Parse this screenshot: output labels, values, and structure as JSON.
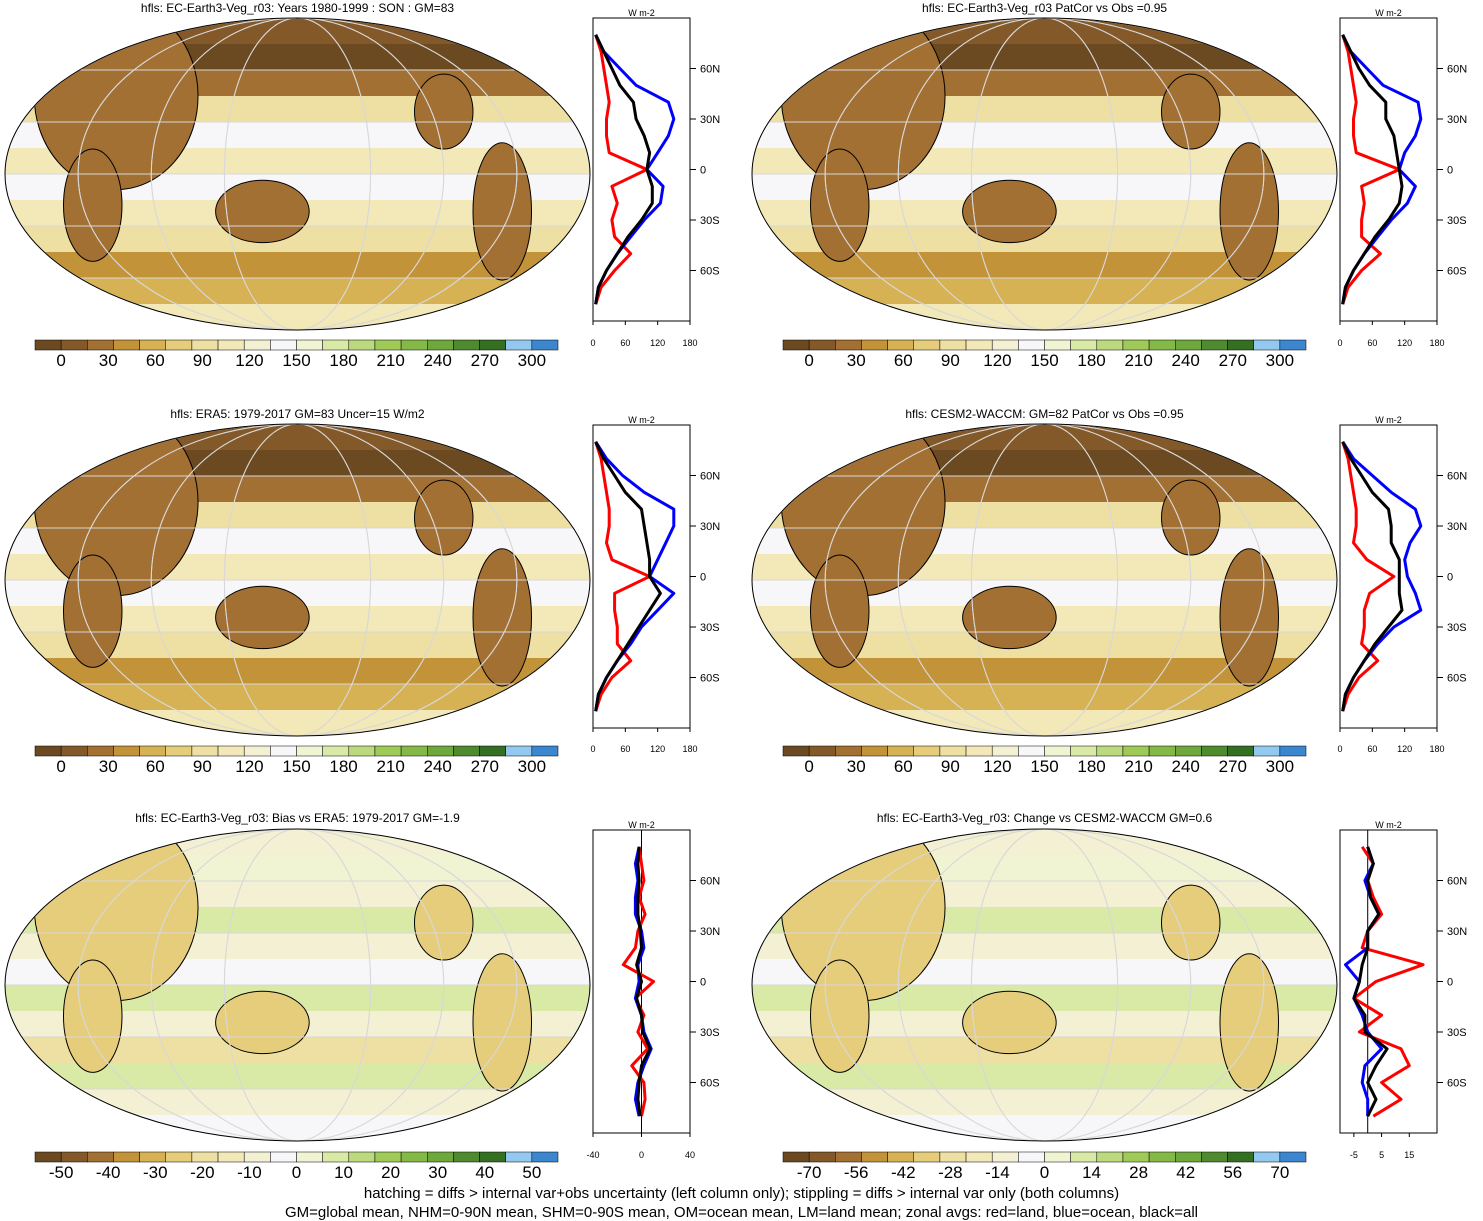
{
  "colors": {
    "land": "#ff0000",
    "ocean": "#0000ff",
    "all": "#000000",
    "abs_scale": [
      "#6b4a21",
      "#84592a",
      "#a37034",
      "#c39339",
      "#d6b255",
      "#e6cd7c",
      "#ede0a2",
      "#f2e8b8",
      "#f4f0d4",
      "#f7f7fa",
      "#f0f4d2",
      "#d9e9a6",
      "#bbd97d",
      "#9fca58",
      "#84b947",
      "#6ea73b",
      "#4f8b2e",
      "#356f22",
      "#93c9ee",
      "#3b86cf"
    ],
    "diff_scale": [
      "#6b4a21",
      "#84592a",
      "#a37034",
      "#c39339",
      "#d6b255",
      "#e6cd7c",
      "#ede0a2",
      "#f2e8b8",
      "#f4f0d4",
      "#f7f7fa",
      "#f0f4d2",
      "#d9e9a6",
      "#bbd97d",
      "#9fca58",
      "#84b947",
      "#6ea73b",
      "#4f8b2e",
      "#356f22",
      "#93c9ee",
      "#3b86cf"
    ]
  },
  "chart_data": [
    {
      "type": "heatmap",
      "title": "hfls: EC-Earth3-Veg_r03: Years 1980-1999 : SON : GM=83",
      "colorbar_labels": [
        "0",
        "30",
        "60",
        "90",
        "120",
        "150",
        "180",
        "210",
        "240",
        "270",
        "300"
      ],
      "zonal": {
        "type": "line",
        "unit": "W m-2",
        "xlim": [
          0,
          180
        ],
        "xticks": [
          "0",
          "60",
          "120",
          "180"
        ],
        "ylim": [
          -90,
          90
        ],
        "yticks": [
          "60N",
          "30N",
          "0",
          "30S",
          "60S"
        ],
        "series": [
          {
            "color": "land",
            "lat": [
              80,
              70,
              60,
              50,
              40,
              30,
              20,
              10,
              0,
              -10,
              -20,
              -30,
              -40,
              -50,
              -60,
              -70,
              -80
            ],
            "values": [
              5,
              15,
              20,
              25,
              30,
              25,
              25,
              30,
              100,
              35,
              45,
              35,
              40,
              70,
              40,
              15,
              5
            ]
          },
          {
            "color": "ocean",
            "lat": [
              80,
              70,
              60,
              50,
              40,
              30,
              20,
              10,
              0,
              -10,
              -20,
              -30,
              -40,
              -50,
              -60,
              -70,
              -80
            ],
            "values": [
              5,
              20,
              50,
              80,
              140,
              150,
              140,
              120,
              100,
              130,
              125,
              95,
              70,
              45,
              25,
              10,
              5
            ]
          },
          {
            "color": "all",
            "lat": [
              80,
              70,
              60,
              50,
              40,
              30,
              20,
              10,
              0,
              -10,
              -20,
              -30,
              -40,
              -50,
              -60,
              -70,
              -80
            ],
            "values": [
              5,
              20,
              35,
              50,
              75,
              80,
              95,
              105,
              100,
              110,
              110,
              90,
              65,
              45,
              25,
              10,
              5
            ]
          }
        ]
      }
    },
    {
      "type": "heatmap",
      "title": "hfls: EC-Earth3-Veg_r03 PatCor vs Obs =0.95",
      "colorbar_labels": [
        "0",
        "30",
        "60",
        "90",
        "120",
        "150",
        "180",
        "210",
        "240",
        "270",
        "300"
      ],
      "zonal": {
        "type": "line",
        "unit": "W m-2",
        "xlim": [
          0,
          180
        ],
        "xticks": [
          "0",
          "60",
          "120",
          "180"
        ],
        "ylim": [
          -90,
          90
        ],
        "yticks": [
          "60N",
          "30N",
          "0",
          "30S",
          "60S"
        ],
        "series": [
          {
            "color": "land",
            "lat": [
              80,
              70,
              60,
              50,
              40,
              30,
              20,
              10,
              0,
              -10,
              -20,
              -30,
              -40,
              -50,
              -60,
              -70,
              -80
            ],
            "values": [
              5,
              15,
              20,
              25,
              30,
              25,
              25,
              30,
              110,
              40,
              45,
              40,
              40,
              75,
              40,
              15,
              5
            ]
          },
          {
            "color": "ocean",
            "lat": [
              80,
              70,
              60,
              50,
              40,
              30,
              20,
              10,
              0,
              -10,
              -20,
              -30,
              -40,
              -50,
              -60,
              -70,
              -80
            ],
            "values": [
              5,
              20,
              50,
              80,
              145,
              150,
              140,
              120,
              110,
              140,
              125,
              95,
              70,
              45,
              25,
              10,
              5
            ]
          },
          {
            "color": "all",
            "lat": [
              80,
              70,
              60,
              50,
              40,
              30,
              20,
              10,
              0,
              -10,
              -20,
              -30,
              -40,
              -50,
              -60,
              -70,
              -80
            ],
            "values": [
              5,
              20,
              35,
              55,
              85,
              85,
              100,
              105,
              110,
              115,
              110,
              90,
              65,
              45,
              25,
              10,
              5
            ]
          }
        ]
      }
    },
    {
      "type": "heatmap",
      "title": "hfls: ERA5: 1979-2017 GM=83 Uncer=15 W/m2",
      "colorbar_labels": [
        "0",
        "30",
        "60",
        "90",
        "120",
        "150",
        "180",
        "210",
        "240",
        "270",
        "300"
      ],
      "zonal": {
        "type": "line",
        "unit": "W m-2",
        "xlim": [
          0,
          180
        ],
        "xticks": [
          "0",
          "60",
          "120",
          "180"
        ],
        "ylim": [
          -90,
          90
        ],
        "yticks": [
          "60N",
          "30N",
          "0",
          "30S",
          "60S"
        ],
        "series": [
          {
            "color": "land",
            "lat": [
              80,
              70,
              60,
              50,
              40,
              30,
              20,
              10,
              0,
              -10,
              -20,
              -30,
              -40,
              -50,
              -60,
              -70,
              -80
            ],
            "values": [
              5,
              15,
              20,
              25,
              30,
              30,
              25,
              35,
              105,
              40,
              40,
              45,
              45,
              70,
              35,
              15,
              5
            ]
          },
          {
            "color": "ocean",
            "lat": [
              80,
              70,
              60,
              50,
              40,
              30,
              20,
              10,
              0,
              -10,
              -20,
              -30,
              -40,
              -50,
              -60,
              -70,
              -80
            ],
            "values": [
              5,
              25,
              55,
              95,
              150,
              150,
              135,
              120,
              105,
              150,
              120,
              90,
              70,
              45,
              25,
              10,
              5
            ]
          },
          {
            "color": "all",
            "lat": [
              80,
              70,
              60,
              50,
              40,
              30,
              20,
              10,
              0,
              -10,
              -20,
              -30,
              -40,
              -50,
              -60,
              -70,
              -80
            ],
            "values": [
              5,
              20,
              40,
              60,
              90,
              95,
              100,
              105,
              105,
              125,
              105,
              85,
              65,
              45,
              25,
              10,
              5
            ]
          }
        ]
      }
    },
    {
      "type": "heatmap",
      "title": "hfls: CESM2-WACCM: GM=82 PatCor vs Obs =0.95",
      "colorbar_labels": [
        "0",
        "30",
        "60",
        "90",
        "120",
        "150",
        "180",
        "210",
        "240",
        "270",
        "300"
      ],
      "zonal": {
        "type": "line",
        "unit": "W m-2",
        "xlim": [
          0,
          180
        ],
        "xticks": [
          "0",
          "60",
          "120",
          "180"
        ],
        "ylim": [
          -90,
          90
        ],
        "yticks": [
          "60N",
          "30N",
          "0",
          "30S",
          "60S"
        ],
        "series": [
          {
            "color": "land",
            "lat": [
              80,
              70,
              60,
              50,
              40,
              30,
              20,
              10,
              0,
              -10,
              -20,
              -30,
              -40,
              -50,
              -60,
              -70,
              -80
            ],
            "values": [
              5,
              15,
              20,
              25,
              30,
              30,
              25,
              50,
              100,
              55,
              45,
              45,
              40,
              70,
              35,
              15,
              5
            ]
          },
          {
            "color": "ocean",
            "lat": [
              80,
              70,
              60,
              50,
              40,
              30,
              20,
              10,
              0,
              -10,
              -20,
              -30,
              -40,
              -50,
              -60,
              -70,
              -80
            ],
            "values": [
              5,
              25,
              60,
              95,
              140,
              150,
              130,
              120,
              125,
              140,
              150,
              100,
              70,
              45,
              25,
              10,
              5
            ]
          },
          {
            "color": "all",
            "lat": [
              80,
              70,
              60,
              50,
              40,
              30,
              20,
              10,
              0,
              -10,
              -20,
              -30,
              -40,
              -50,
              -60,
              -70,
              -80
            ],
            "values": [
              5,
              20,
              40,
              60,
              90,
              95,
              95,
              110,
              110,
              110,
              115,
              90,
              65,
              45,
              25,
              10,
              5
            ]
          }
        ]
      }
    },
    {
      "type": "heatmap",
      "title": "hfls: EC-Earth3-Veg_r03: Bias vs ERA5: 1979-2017  GM=-1.9",
      "colorbar_labels": [
        "-50",
        "-40",
        "-30",
        "-20",
        "-10",
        "0",
        "10",
        "20",
        "30",
        "40",
        "50"
      ],
      "zonal": {
        "type": "line",
        "unit": "W m-2",
        "xlim": [
          -40,
          40
        ],
        "xticks": [
          "-40",
          "0",
          "40"
        ],
        "ylim": [
          -90,
          90
        ],
        "yticks": [
          "60N",
          "30N",
          "0",
          "30S",
          "60S"
        ],
        "series": [
          {
            "color": "land",
            "lat": [
              80,
              70,
              60,
              50,
              40,
              30,
              20,
              10,
              0,
              -10,
              -20,
              -30,
              -40,
              -50,
              -60,
              -70,
              -80
            ],
            "values": [
              -2,
              0,
              2,
              -2,
              3,
              -3,
              -5,
              -15,
              10,
              -5,
              2,
              -3,
              5,
              -8,
              2,
              3,
              0
            ]
          },
          {
            "color": "ocean",
            "lat": [
              80,
              70,
              60,
              50,
              40,
              30,
              20,
              10,
              0,
              -10,
              -20,
              -30,
              -40,
              -50,
              -60,
              -70,
              -80
            ],
            "values": [
              -2,
              -5,
              -3,
              -5,
              -5,
              0,
              2,
              -3,
              -2,
              -5,
              0,
              2,
              8,
              2,
              -3,
              -5,
              -2
            ]
          },
          {
            "color": "all",
            "lat": [
              80,
              70,
              60,
              50,
              40,
              30,
              20,
              10,
              0,
              -10,
              -20,
              -30,
              -40,
              -50,
              -60,
              -70,
              -80
            ],
            "values": [
              -2,
              -3,
              -2,
              -3,
              -3,
              -1,
              0,
              -4,
              0,
              -4,
              0,
              1,
              7,
              0,
              -2,
              -3,
              -1
            ]
          }
        ]
      }
    },
    {
      "type": "heatmap",
      "title": "hfls: EC-Earth3-Veg_r03: Change vs CESM2-WACCM GM=0.6",
      "colorbar_labels": [
        "-70",
        "-56",
        "-42",
        "-28",
        "-14",
        "0",
        "14",
        "28",
        "42",
        "56",
        "70"
      ],
      "zonal": {
        "type": "line",
        "unit": "W m-2",
        "xlim": [
          -10,
          25
        ],
        "xticks": [
          "-5",
          "5",
          "15"
        ],
        "ylim": [
          -90,
          90
        ],
        "yticks": [
          "60N",
          "30N",
          "0",
          "30S",
          "60S"
        ],
        "series": [
          {
            "color": "land",
            "lat": [
              80,
              70,
              60,
              50,
              40,
              30,
              20,
              10,
              0,
              -10,
              -20,
              -30,
              -40,
              -50,
              -60,
              -70,
              -80
            ],
            "values": [
              -2,
              2,
              0,
              2,
              5,
              0,
              -2,
              20,
              3,
              -5,
              5,
              -3,
              12,
              15,
              5,
              12,
              2
            ]
          },
          {
            "color": "ocean",
            "lat": [
              80,
              70,
              60,
              50,
              40,
              30,
              20,
              10,
              0,
              -10,
              -20,
              -30,
              -40,
              -50,
              -60,
              -70,
              -80
            ],
            "values": [
              0,
              2,
              -1,
              1,
              4,
              0,
              0,
              -8,
              -3,
              -5,
              -2,
              0,
              5,
              -1,
              -2,
              0,
              0
            ]
          },
          {
            "color": "all",
            "lat": [
              80,
              70,
              60,
              50,
              40,
              30,
              20,
              10,
              0,
              -10,
              -20,
              -30,
              -40,
              -50,
              -60,
              -70,
              -80
            ],
            "values": [
              0,
              2,
              0,
              1,
              4,
              0,
              0,
              -2,
              -3,
              -5,
              -1,
              -1,
              7,
              3,
              0,
              3,
              0
            ]
          }
        ]
      }
    }
  ],
  "footer": {
    "line1": "hatching = diffs > internal var+obs uncertainty (left column only); stippling = diffs > internal var only (both columns)",
    "line2": "GM=global mean, NHM=0-90N mean, SHM=0-90S mean, OM=ocean mean, LM=land mean; zonal avgs: red=land, blue=ocean, black=all"
  }
}
